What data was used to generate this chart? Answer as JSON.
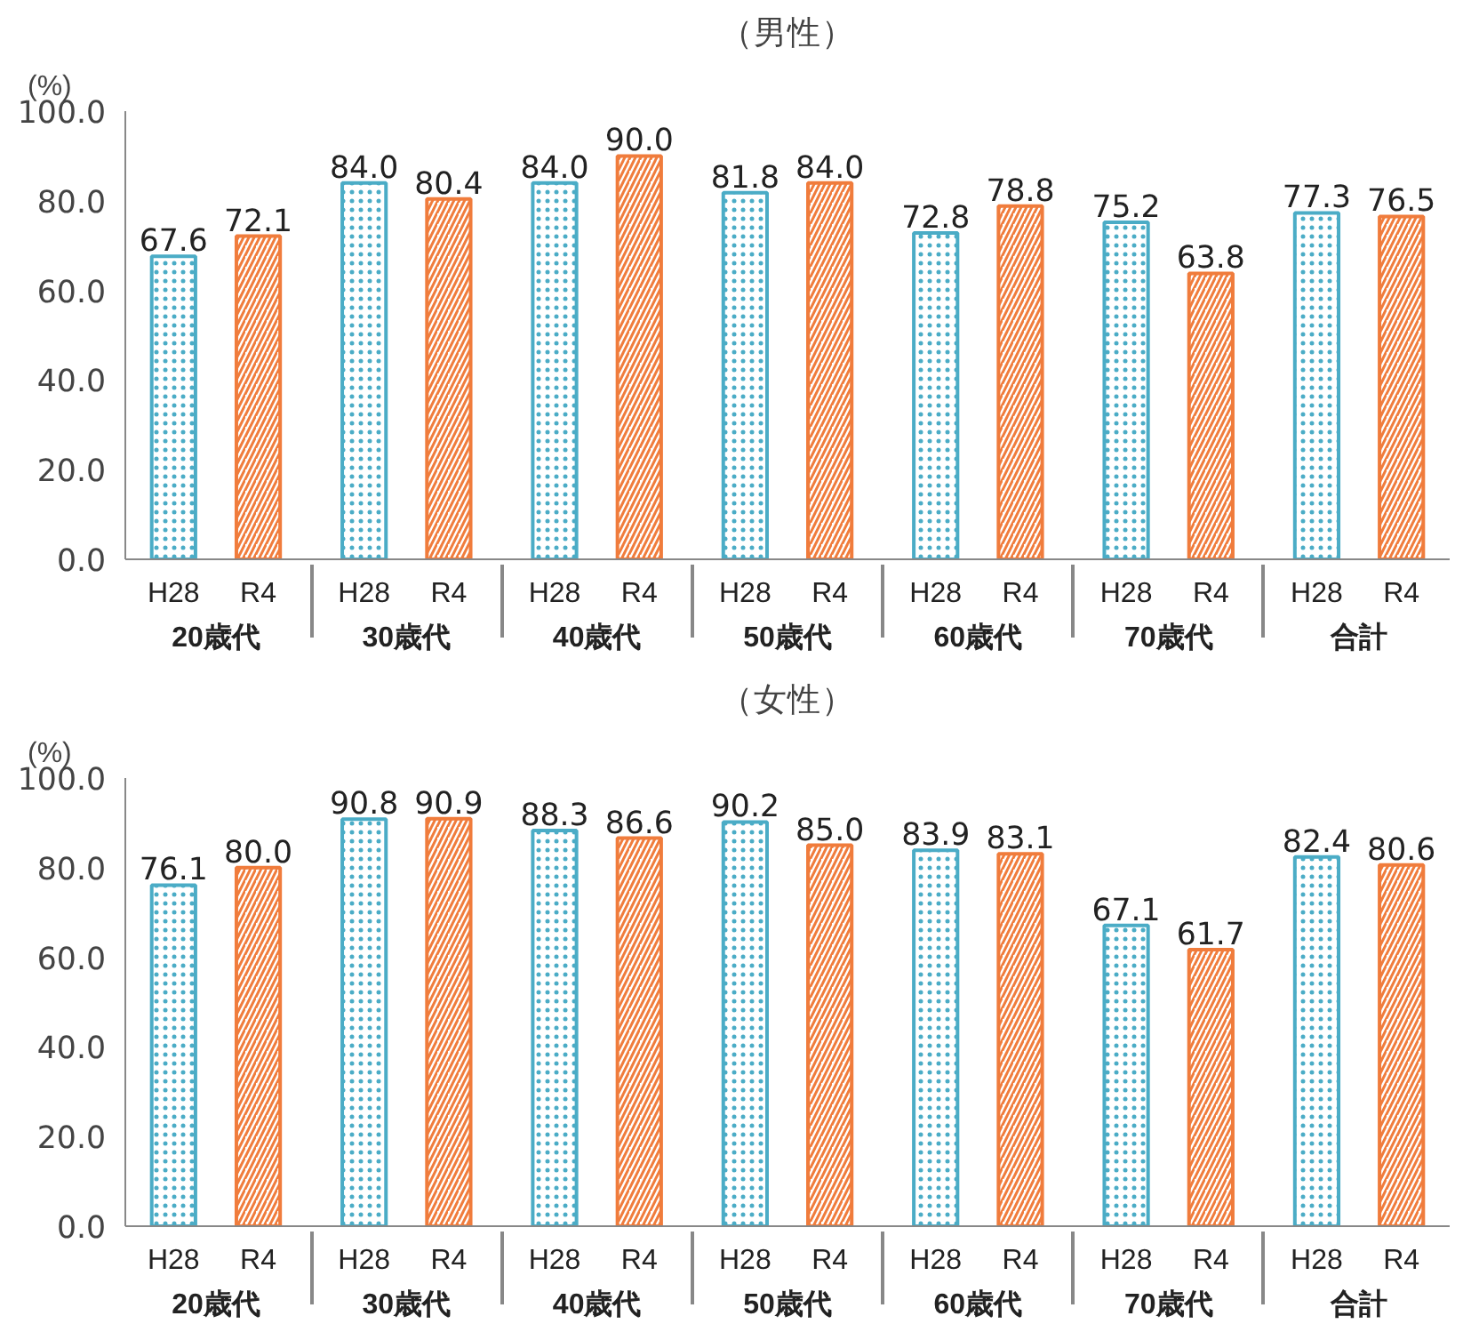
{
  "chart_data": [
    {
      "type": "bar",
      "title": "（男性）",
      "ylabel": "(%)",
      "categories": [
        "20歳代",
        "30歳代",
        "40歳代",
        "50歳代",
        "60歳代",
        "70歳代",
        "合計"
      ],
      "series": [
        {
          "name": "H28",
          "color": "#4bacc6",
          "values": [
            67.6,
            84.0,
            84.0,
            81.8,
            72.8,
            75.2,
            77.3
          ],
          "value_labels": [
            "67.6",
            "84.0",
            "84.0",
            "81.8",
            "72.8",
            "75.2",
            "77.3"
          ]
        },
        {
          "name": "R4",
          "color": "#f07c3c",
          "values": [
            72.1,
            80.4,
            90.0,
            84.0,
            78.8,
            63.8,
            76.5
          ],
          "value_labels": [
            "72.1",
            "80.4",
            "90.0",
            "84.0",
            "78.8",
            "63.8",
            "76.5"
          ]
        }
      ],
      "ylim": [
        0,
        100
      ],
      "yticks": [
        {
          "value": 0,
          "label": "0.0"
        },
        {
          "value": 20,
          "label": "20.0"
        },
        {
          "value": 40,
          "label": "40.0"
        },
        {
          "value": 60,
          "label": "60.0"
        },
        {
          "value": 80,
          "label": "80.0"
        },
        {
          "value": 100,
          "label": "100.0"
        }
      ],
      "grid": false,
      "legend": false
    },
    {
      "type": "bar",
      "title": "（女性）",
      "ylabel": "(%)",
      "categories": [
        "20歳代",
        "30歳代",
        "40歳代",
        "50歳代",
        "60歳代",
        "70歳代",
        "合計"
      ],
      "series": [
        {
          "name": "H28",
          "color": "#4bacc6",
          "values": [
            76.1,
            90.8,
            88.3,
            90.2,
            83.9,
            67.1,
            82.4
          ],
          "value_labels": [
            "76.1",
            "90.8",
            "88.3",
            "90.2",
            "83.9",
            "67.1",
            "82.4"
          ]
        },
        {
          "name": "R4",
          "color": "#f07c3c",
          "values": [
            80.0,
            90.9,
            86.6,
            85.0,
            83.1,
            61.7,
            80.6
          ],
          "value_labels": [
            "80.0",
            "90.9",
            "86.6",
            "85.0",
            "83.1",
            "61.7",
            "80.6"
          ]
        }
      ],
      "ylim": [
        0,
        100
      ],
      "yticks": [
        {
          "value": 0,
          "label": "0.0"
        },
        {
          "value": 20,
          "label": "20.0"
        },
        {
          "value": 40,
          "label": "40.0"
        },
        {
          "value": 60,
          "label": "60.0"
        },
        {
          "value": 80,
          "label": "80.0"
        },
        {
          "value": 100,
          "label": "100.0"
        }
      ],
      "grid": false,
      "legend": false
    }
  ]
}
